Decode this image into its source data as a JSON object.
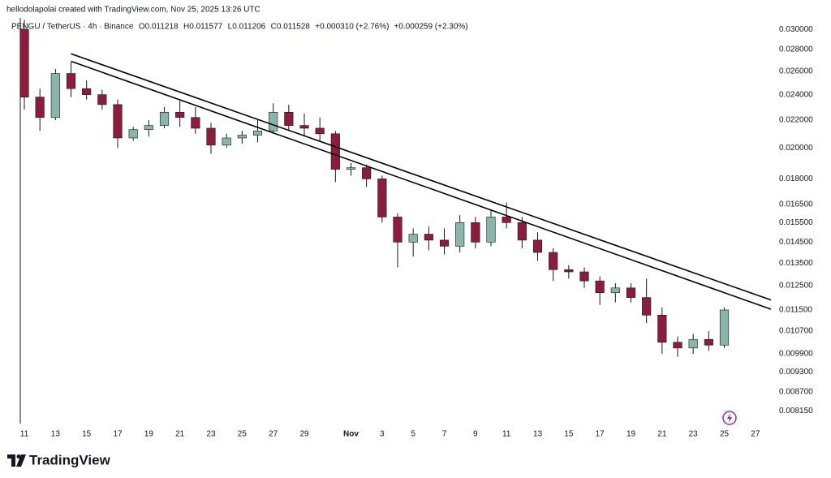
{
  "chart_data": {
    "type": "candlestick",
    "attribution": "hellodolapolai created with TradingView.com, Nov 25, 2025 13:26 UTC",
    "symbol": "PENGU / TetherUS · 4h · Binance",
    "ohlc_legend": [
      "O0.011218",
      "H0.011577",
      "L0.011206",
      "C0.011528",
      "+0.000310 (+2.76%)",
      "+0.000259 (+2.30%)"
    ],
    "brand": "TradingView",
    "log_scale": true,
    "up_color": "#8ab5ab",
    "down_color": "#8c1c3c",
    "line_color": "#000000",
    "x": [
      "2025-10-11",
      "2025-10-12",
      "2025-10-13",
      "2025-10-14",
      "2025-10-15",
      "2025-10-16",
      "2025-10-17",
      "2025-10-18",
      "2025-10-19",
      "2025-10-20",
      "2025-10-21",
      "2025-10-22",
      "2025-10-23",
      "2025-10-24",
      "2025-10-25",
      "2025-10-26",
      "2025-10-27",
      "2025-10-28",
      "2025-10-29",
      "2025-10-30",
      "2025-10-31",
      "2025-11-01",
      "2025-11-02",
      "2025-11-03",
      "2025-11-04",
      "2025-11-05",
      "2025-11-06",
      "2025-11-07",
      "2025-11-08",
      "2025-11-09",
      "2025-11-10",
      "2025-11-11",
      "2025-11-12",
      "2025-11-13",
      "2025-11-14",
      "2025-11-15",
      "2025-11-16",
      "2025-11-17",
      "2025-11-18",
      "2025-11-19",
      "2025-11-20",
      "2025-11-21",
      "2025-11-22",
      "2025-11-23",
      "2025-11-24",
      "2025-11-25"
    ],
    "open": [
      0.03,
      0.0238,
      0.0222,
      0.0258,
      0.0245,
      0.024,
      0.0232,
      0.0207,
      0.0213,
      0.0216,
      0.0226,
      0.0222,
      0.0214,
      0.0202,
      0.0207,
      0.0209,
      0.0212,
      0.0226,
      0.0216,
      0.0214,
      0.021,
      0.0186,
      0.0187,
      0.018,
      0.0158,
      0.0145,
      0.0149,
      0.0146,
      0.0143,
      0.0155,
      0.0145,
      0.0158,
      0.0155,
      0.0146,
      0.014,
      0.0132,
      0.0131,
      0.0127,
      0.0122,
      0.0124,
      0.012,
      0.0113,
      0.0103,
      0.0101,
      0.0104,
      0.0102
    ],
    "high": [
      0.031,
      0.0245,
      0.0262,
      0.0268,
      0.0252,
      0.0244,
      0.0236,
      0.0215,
      0.022,
      0.023,
      0.0235,
      0.023,
      0.0218,
      0.021,
      0.0212,
      0.022,
      0.0233,
      0.0232,
      0.0225,
      0.0222,
      0.0212,
      0.019,
      0.0189,
      0.0182,
      0.016,
      0.0152,
      0.0153,
      0.0152,
      0.0159,
      0.0158,
      0.0162,
      0.0166,
      0.0158,
      0.015,
      0.0142,
      0.0134,
      0.0133,
      0.0129,
      0.0126,
      0.0126,
      0.0128,
      0.0116,
      0.0105,
      0.0106,
      0.0107,
      0.0116
    ],
    "low": [
      0.0228,
      0.0212,
      0.022,
      0.0238,
      0.0236,
      0.0228,
      0.02,
      0.0205,
      0.0208,
      0.0214,
      0.0215,
      0.021,
      0.0196,
      0.02,
      0.0203,
      0.0204,
      0.021,
      0.0212,
      0.0208,
      0.0205,
      0.0178,
      0.0182,
      0.0175,
      0.0155,
      0.0133,
      0.0138,
      0.0141,
      0.0139,
      0.014,
      0.0142,
      0.0143,
      0.0152,
      0.0142,
      0.0136,
      0.0127,
      0.0128,
      0.0124,
      0.0117,
      0.0118,
      0.0118,
      0.011,
      0.0099,
      0.0098,
      0.0099,
      0.01,
      0.0101
    ],
    "close": [
      0.0238,
      0.0222,
      0.0258,
      0.0245,
      0.024,
      0.0232,
      0.0207,
      0.0213,
      0.0216,
      0.0226,
      0.0222,
      0.0214,
      0.0202,
      0.0207,
      0.0209,
      0.0212,
      0.0226,
      0.0216,
      0.0214,
      0.021,
      0.0186,
      0.0187,
      0.018,
      0.0158,
      0.0145,
      0.0149,
      0.0146,
      0.0143,
      0.0155,
      0.0145,
      0.0158,
      0.0155,
      0.0146,
      0.014,
      0.0132,
      0.0131,
      0.0127,
      0.0122,
      0.0124,
      0.012,
      0.0113,
      0.0103,
      0.0101,
      0.0104,
      0.0102,
      0.0115
    ],
    "trend_lines": [
      {
        "x": [
          "2025-10-14",
          "2025-11-28"
        ],
        "y": [
          0.0276,
          0.0119
        ]
      },
      {
        "x": [
          "2025-10-14",
          "2025-11-28"
        ],
        "y": [
          0.0269,
          0.01153
        ]
      }
    ],
    "xlim": [
      "2025-10-11",
      "2025-11-28"
    ],
    "ylim": [
      0.0078,
      0.0312
    ],
    "xticks": [
      {
        "value": "2025-10-11",
        "label": "11"
      },
      {
        "value": "2025-10-13",
        "label": "13"
      },
      {
        "value": "2025-10-15",
        "label": "15"
      },
      {
        "value": "2025-10-17",
        "label": "17"
      },
      {
        "value": "2025-10-19",
        "label": "19"
      },
      {
        "value": "2025-10-21",
        "label": "21"
      },
      {
        "value": "2025-10-23",
        "label": "23"
      },
      {
        "value": "2025-10-25",
        "label": "25"
      },
      {
        "value": "2025-10-27",
        "label": "27"
      },
      {
        "value": "2025-10-29",
        "label": "29"
      },
      {
        "value": "2025-11-01",
        "label": "Nov"
      },
      {
        "value": "2025-11-03",
        "label": "3"
      },
      {
        "value": "2025-11-05",
        "label": "5"
      },
      {
        "value": "2025-11-07",
        "label": "7"
      },
      {
        "value": "2025-11-09",
        "label": "9"
      },
      {
        "value": "2025-11-11",
        "label": "11"
      },
      {
        "value": "2025-11-13",
        "label": "13"
      },
      {
        "value": "2025-11-15",
        "label": "15"
      },
      {
        "value": "2025-11-17",
        "label": "17"
      },
      {
        "value": "2025-11-19",
        "label": "19"
      },
      {
        "value": "2025-11-21",
        "label": "21"
      },
      {
        "value": "2025-11-23",
        "label": "23"
      },
      {
        "value": "2025-11-25",
        "label": "25"
      },
      {
        "value": "2025-11-27",
        "label": "27"
      }
    ],
    "yticks": [
      {
        "value": 0.03,
        "label": "0.030000"
      },
      {
        "value": 0.028,
        "label": "0.028000"
      },
      {
        "value": 0.026,
        "label": "0.026000"
      },
      {
        "value": 0.024,
        "label": "0.024000"
      },
      {
        "value": 0.022,
        "label": "0.022000"
      },
      {
        "value": 0.02,
        "label": "0.020000"
      },
      {
        "value": 0.018,
        "label": "0.018000"
      },
      {
        "value": 0.0165,
        "label": "0.016500"
      },
      {
        "value": 0.0155,
        "label": "0.015500"
      },
      {
        "value": 0.0145,
        "label": "0.014500"
      },
      {
        "value": 0.0135,
        "label": "0.013500"
      },
      {
        "value": 0.0125,
        "label": "0.012500"
      },
      {
        "value": 0.0115,
        "label": "0.011500"
      },
      {
        "value": 0.0107,
        "label": "0.010700"
      },
      {
        "value": 0.0099,
        "label": "0.009900"
      },
      {
        "value": 0.0093,
        "label": "0.009300"
      },
      {
        "value": 0.0087,
        "label": "0.008700"
      },
      {
        "value": 0.00815,
        "label": "0.008150"
      }
    ]
  }
}
